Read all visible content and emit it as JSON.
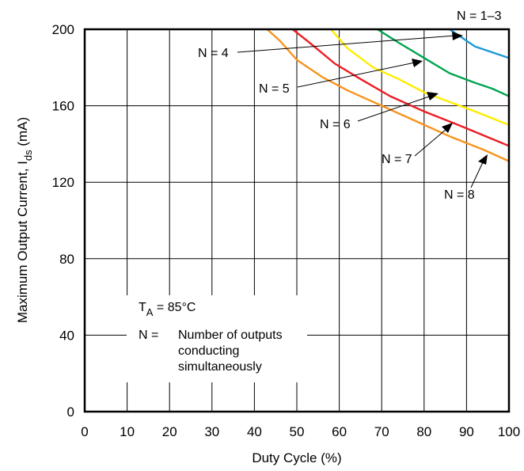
{
  "chart_data": {
    "type": "line",
    "xlabel": "Duty Cycle (%)",
    "ylabel_main": "Maximum Output Current, I",
    "ylabel_sub": "ds",
    "ylabel_unit": " (mA)",
    "xlim": [
      0,
      100
    ],
    "ylim": [
      0,
      200
    ],
    "xticks": [
      "0",
      "10",
      "20",
      "30",
      "40",
      "50",
      "60",
      "70",
      "80",
      "90",
      "100"
    ],
    "yticks": [
      "0",
      "40",
      "80",
      "120",
      "160",
      "200"
    ],
    "grid": true,
    "series": [
      {
        "name": "N = 1–3",
        "color": "#1e9ad6",
        "x": [
          86,
          88,
          92,
          96,
          100
        ],
        "y": [
          200,
          197,
          191,
          188,
          185
        ]
      },
      {
        "name": "N = 4",
        "color": "#00a550",
        "x": [
          69,
          74,
          80,
          86,
          92,
          96,
          100
        ],
        "y": [
          200,
          193,
          185,
          177,
          172,
          169,
          165
        ]
      },
      {
        "name": "N = 5",
        "color": "#ffec00",
        "x": [
          58,
          62,
          68,
          74,
          80,
          86,
          92,
          100
        ],
        "y": [
          200,
          190,
          180,
          174,
          167,
          162,
          157,
          150
        ]
      },
      {
        "name": "N = 6",
        "color": "#ed1c24",
        "x": [
          49,
          53,
          59,
          65,
          72,
          80,
          88,
          100
        ],
        "y": [
          200,
          193,
          182,
          174,
          165,
          157,
          150,
          139
        ]
      },
      {
        "name": "N = 7",
        "color": "#f7941d",
        "x": [
          43,
          46,
          50,
          56,
          62,
          70,
          78,
          86,
          94,
          100
        ],
        "y": [
          200,
          194,
          184,
          175,
          168,
          160,
          152,
          144,
          137,
          131
        ]
      }
    ],
    "annotations": {
      "n13": "N = 1–3",
      "n4": "N = 4",
      "n5": "N = 5",
      "n6": "N = 6",
      "n7": "N = 7",
      "n8": "N = 8"
    },
    "legend": {
      "ta_label": "T",
      "ta_sub": "A",
      "ta_value": " =  85°C",
      "n_label": "N  =",
      "n_desc": [
        "Number of outputs",
        "conducting",
        "simultaneously"
      ]
    }
  }
}
